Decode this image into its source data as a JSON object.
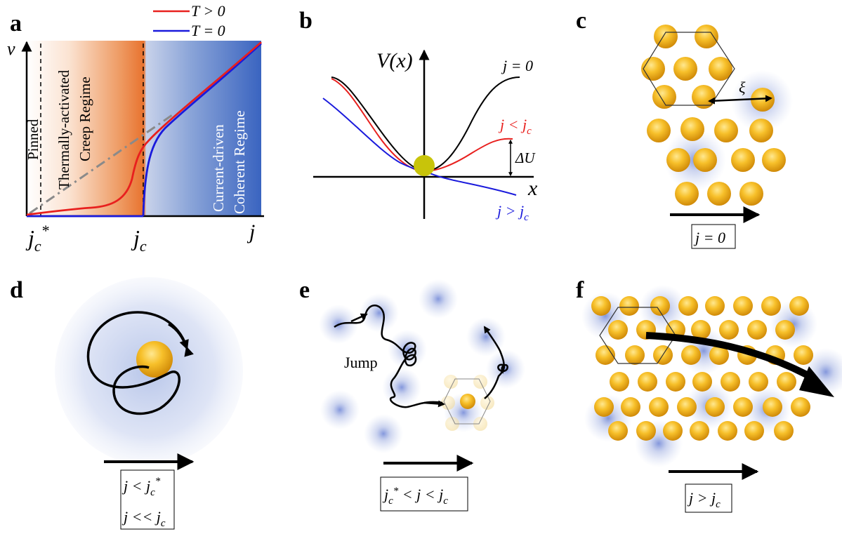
{
  "panels": {
    "a": {
      "letter": "a",
      "y_axis": "v",
      "x_axis": "j",
      "tick_jc_star": "j",
      "tick_jc_star_sub": "c",
      "tick_jc_star_sup": "*",
      "tick_jc": "j",
      "tick_jc_sub": "c",
      "legend_red": "T > 0",
      "legend_blue": "T = 0",
      "region_pinned": "Pinned",
      "region_creep_1": "Thermally-activated",
      "region_creep_2": "Creep Regime",
      "region_coherent_1": "Current-driven",
      "region_coherent_2": "Coherent Regime"
    },
    "b": {
      "letter": "b",
      "y_axis": "V(x)",
      "x_axis": "x",
      "curve_black": "j = 0",
      "curve_red": "j < j",
      "curve_red_sub": "c",
      "curve_blue": "j > j",
      "curve_blue_sub": "c",
      "barrier": "ΔU"
    },
    "c": {
      "letter": "c",
      "length": "ξ",
      "box": "j = 0"
    },
    "d": {
      "letter": "d",
      "box_line1": "j < j",
      "box_line1_sub": "c",
      "box_line1_sup": "*",
      "box_line2": "j << j",
      "box_line2_sub": "c"
    },
    "e": {
      "letter": "e",
      "jump": "Jump",
      "box_a": "j",
      "box_sub1": "c",
      "box_sup": "*",
      "box_b": " < j < j",
      "box_sub2": "c"
    },
    "f": {
      "letter": "f",
      "box": "j > j",
      "box_sub": "c"
    }
  },
  "colors": {
    "red": "#e8201e",
    "blue": "#1a1adc",
    "orange": "#e8722e",
    "blue_region": "#4a72c0",
    "ball": "#f2b118",
    "halo": "#8aa0dc"
  }
}
